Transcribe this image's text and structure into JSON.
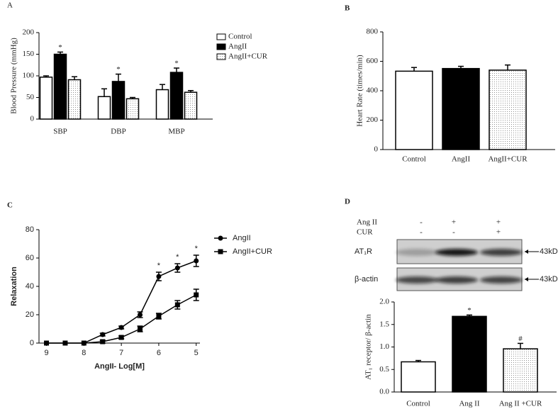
{
  "chart_data": [
    {
      "type": "bar",
      "panel": "A",
      "ylabel": "Blood Pressure (mmHg)",
      "categories": [
        "SBP",
        "DBP",
        "MBP"
      ],
      "series": [
        {
          "name": "Control",
          "fill": "#ffffff",
          "values": [
            97,
            52,
            68
          ],
          "errors": [
            3,
            18,
            12
          ],
          "significance": [
            null,
            null,
            null
          ]
        },
        {
          "name": "AngII",
          "fill": "#000000",
          "values": [
            150,
            87,
            108
          ],
          "errors": [
            5,
            17,
            10
          ],
          "significance": [
            "*",
            "*",
            "*"
          ]
        },
        {
          "name": "AngII+CUR",
          "fill": "dotted",
          "values": [
            91,
            47,
            62
          ],
          "errors": [
            7,
            3,
            4
          ],
          "significance": [
            null,
            null,
            null
          ]
        }
      ],
      "ylim": [
        0,
        200
      ],
      "yticks": [
        0,
        50,
        100,
        150,
        200
      ],
      "legend": "upper right"
    },
    {
      "type": "bar",
      "panel": "B",
      "ylabel": "Heart Rate (times/min)",
      "categories": [
        "Control",
        "AngII",
        "AngII+CUR"
      ],
      "values": [
        533,
        551,
        540
      ],
      "errors": [
        25,
        15,
        35
      ],
      "fills": [
        "#ffffff",
        "#000000",
        "dotted"
      ],
      "ylim": [
        0,
        800
      ],
      "yticks": [
        0,
        200,
        400,
        600,
        800
      ]
    },
    {
      "type": "line",
      "panel": "C",
      "xlabel": "AngII- Log[M]",
      "ylabel": "Relaxation",
      "x": [
        9,
        8.5,
        8,
        7.5,
        7,
        6.5,
        6,
        5.5,
        5
      ],
      "series": [
        {
          "name": "AngII",
          "color": "#000000",
          "marker": "circle",
          "values": [
            0,
            0,
            0,
            6,
            11,
            20,
            47,
            53,
            58
          ],
          "errors": [
            0,
            0,
            0,
            1,
            1,
            2,
            3,
            3,
            4
          ],
          "significance": [
            null,
            null,
            null,
            null,
            null,
            null,
            "*",
            "*",
            "*"
          ]
        },
        {
          "name": "AngII+CUR",
          "color": "#000000",
          "marker": "square",
          "values": [
            0,
            0,
            0,
            1,
            4,
            10,
            19,
            27,
            34
          ],
          "errors": [
            0,
            0,
            0,
            1,
            1,
            2,
            2,
            3,
            4
          ],
          "significance": [
            null,
            null,
            null,
            null,
            null,
            null,
            null,
            null,
            null
          ]
        }
      ],
      "xlim": [
        9.2,
        4.9
      ],
      "xticks": [
        9,
        8,
        7,
        6,
        5
      ],
      "ylim": [
        0,
        80
      ],
      "yticks": [
        0,
        20,
        40,
        60,
        80
      ],
      "legend": "upper right"
    },
    {
      "type": "bar",
      "panel": "D",
      "ylabel": "AT₁ receptor/ β-actin",
      "categories": [
        "Control",
        "Ang II",
        "Ang II +CUR"
      ],
      "values": [
        0.67,
        1.68,
        0.96
      ],
      "errors": [
        0.03,
        0.03,
        0.12
      ],
      "fills": [
        "#ffffff",
        "#000000",
        "dotted"
      ],
      "significance": [
        null,
        "*",
        "#"
      ],
      "ylim": [
        0,
        2
      ],
      "yticks": [
        {
          "value": 0,
          "label": "0.0"
        },
        {
          "value": 0.5,
          "label": "0.5"
        },
        {
          "value": 1,
          "label": "1.0"
        },
        {
          "value": 1.5,
          "label": "1.5"
        },
        {
          "value": 2,
          "label": "2.0"
        }
      ]
    }
  ],
  "blot": {
    "treatments": [
      {
        "label": "Ang II",
        "marks": [
          "-",
          "+",
          "+"
        ]
      },
      {
        "label": "CUR",
        "marks": [
          "-",
          "-",
          "+"
        ]
      }
    ],
    "bands": [
      {
        "label": "AT₁R",
        "size": "43kD"
      },
      {
        "label": "β-actin",
        "size": "43kD"
      }
    ]
  }
}
